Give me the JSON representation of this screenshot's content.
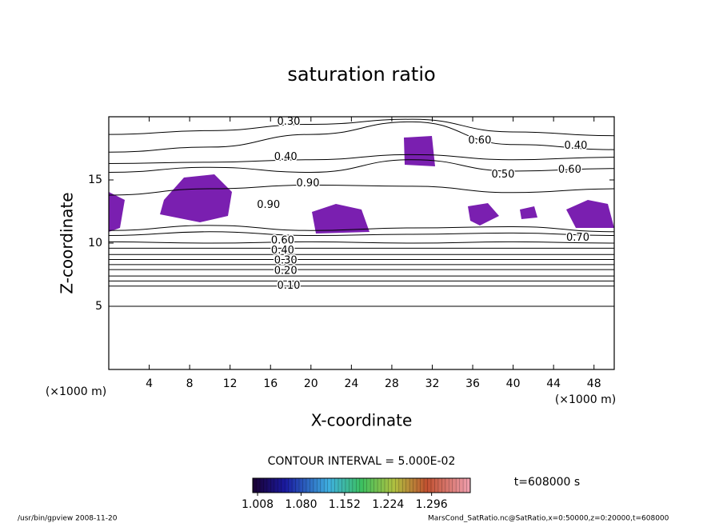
{
  "chart_data": {
    "type": "contour",
    "title": "saturation ratio",
    "xlabel": "X-coordinate",
    "ylabel": "Z-coordinate",
    "x_unit": "(×1000 m)",
    "xlim": [
      0,
      50
    ],
    "ylim": [
      0,
      20
    ],
    "xticks": [
      4,
      8,
      12,
      16,
      20,
      24,
      28,
      32,
      36,
      40,
      44,
      48
    ],
    "yticks": [
      5,
      10,
      15
    ],
    "contour_interval_label": "CONTOUR INTERVAL = 5.000E-02",
    "time_label": "t=608000 s",
    "contour_x": [
      0,
      10,
      20,
      30,
      40,
      50
    ],
    "contours": [
      {
        "level": 0.05,
        "z": [
          5.0,
          5.0,
          5.0,
          5.0,
          5.0,
          5.0
        ]
      },
      {
        "level": 0.1,
        "z": [
          6.6,
          6.6,
          6.6,
          6.6,
          6.6,
          6.6
        ]
      },
      {
        "level": 0.15,
        "z": [
          7.0,
          7.0,
          7.0,
          7.0,
          7.0,
          7.0
        ]
      },
      {
        "level": 0.2,
        "z": [
          7.4,
          7.4,
          7.4,
          7.4,
          7.4,
          7.4
        ]
      },
      {
        "level": 0.25,
        "z": [
          7.9,
          7.9,
          7.9,
          7.9,
          7.9,
          7.9
        ]
      },
      {
        "level": 0.3,
        "z": [
          8.3,
          8.3,
          8.3,
          8.3,
          8.3,
          8.3
        ]
      },
      {
        "level": 0.35,
        "z": [
          8.7,
          8.7,
          8.7,
          8.7,
          8.7,
          8.7
        ]
      },
      {
        "level": 0.4,
        "z": [
          9.1,
          9.1,
          9.1,
          9.1,
          9.1,
          9.1
        ]
      },
      {
        "level": 0.5,
        "z": [
          9.6,
          9.6,
          9.6,
          9.6,
          9.6,
          9.6
        ]
      },
      {
        "level": 0.6,
        "z": [
          10.1,
          10.0,
          10.1,
          10.0,
          10.1,
          10.0
        ]
      },
      {
        "level": 0.7,
        "z": [
          10.6,
          10.9,
          10.6,
          10.7,
          10.8,
          10.6
        ]
      },
      {
        "level": 0.8,
        "z": [
          11.0,
          11.4,
          11.0,
          11.2,
          11.3,
          10.9
        ]
      },
      {
        "level": 0.9,
        "z": [
          13.8,
          14.3,
          14.6,
          14.5,
          14.0,
          14.3
        ]
      },
      {
        "level": 0.6,
        "z": [
          15.6,
          16.0,
          15.6,
          16.6,
          15.7,
          15.9
        ]
      },
      {
        "level": 0.4,
        "z": [
          16.3,
          16.4,
          16.6,
          17.0,
          16.6,
          16.8
        ]
      },
      {
        "level": 0.3,
        "z": [
          17.2,
          17.6,
          18.6,
          19.6,
          17.8,
          17.4
        ]
      },
      {
        "level": 0.25,
        "z": [
          18.6,
          18.9,
          19.4,
          19.8,
          18.8,
          18.5
        ]
      }
    ],
    "contour_labels": [
      {
        "level": 0.3,
        "label": "0.30",
        "x": 17.8,
        "z": 19.6
      },
      {
        "level": 0.4,
        "label": "0.40",
        "x": 17.5,
        "z": 16.8
      },
      {
        "level": 0.4,
        "label": "0.40",
        "x": 46.2,
        "z": 17.7
      },
      {
        "level": 0.6,
        "label": "0.60",
        "x": 36.7,
        "z": 18.1
      },
      {
        "level": 0.5,
        "label": "0.50",
        "x": 39.0,
        "z": 15.4
      },
      {
        "level": 0.6,
        "label": "0.60",
        "x": 45.6,
        "z": 15.8
      },
      {
        "level": 0.9,
        "label": "0.90",
        "x": 19.7,
        "z": 14.7
      },
      {
        "level": 0.9,
        "label": "0.90",
        "x": 15.8,
        "z": 13.0
      },
      {
        "level": 0.6,
        "label": "0.60",
        "x": 17.2,
        "z": 10.2
      },
      {
        "level": 0.4,
        "label": "0.40",
        "x": 17.2,
        "z": 9.4
      },
      {
        "level": 0.3,
        "label": "0.30",
        "x": 17.5,
        "z": 8.6
      },
      {
        "level": 0.2,
        "label": "0.20",
        "x": 17.5,
        "z": 7.8
      },
      {
        "level": 0.1,
        "label": "0.10",
        "x": 17.8,
        "z": 6.6
      },
      {
        "level": 0.7,
        "label": "0.70",
        "x": 46.4,
        "z": 10.4
      }
    ],
    "colorbar": {
      "clim": [
        1.0,
        1.36
      ],
      "ticks": [
        1.008,
        {
          "value": 1.08,
          "label": "1.080"
        },
        1.152,
        1.224,
        1.296
      ]
    },
    "footer_left": "/usr/bin/gpview   2008-11-20",
    "footer_right": "MarsCond_SatRatio.nc@SatRatio,x=0:50000,z=0:20000,t=608000"
  }
}
